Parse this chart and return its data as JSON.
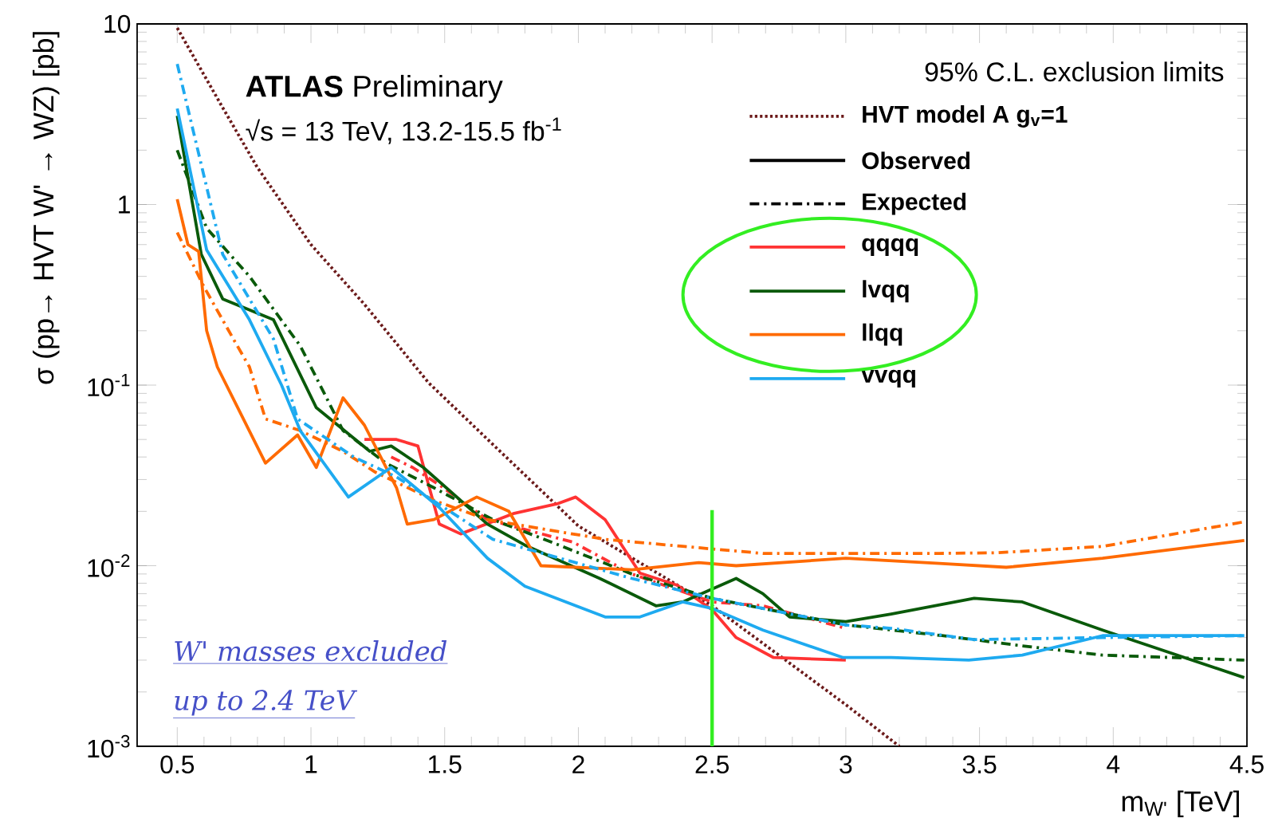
{
  "chart_data": {
    "type": "line",
    "title": "**ATLAS** Preliminary",
    "subtitle": "√s = 13 TeV, 13.2-15.5 fb$^{-1}$",
    "legend_title": "95% C.L. exclusion limits",
    "xlabel": "m$_{W'}$ [TeV]",
    "ylabel": "σ (pp→ HVT W' → WZ) [pb]",
    "log": "y",
    "grid": false,
    "legend": "top right",
    "marker": "none",
    "xlim": [
      0.35,
      4.5
    ],
    "ylim": [
      0.001,
      10
    ],
    "xticks": [
      0.5,
      1,
      1.5,
      2,
      2.5,
      3,
      3.5,
      4,
      4.5
    ],
    "yticks": [
      {
        "value": 0.001,
        "label": "10$^{-3}$"
      },
      {
        "value": 0.01,
        "label": "10$^{-2}$"
      },
      {
        "value": 0.1,
        "label": "10$^{-1}$"
      },
      1,
      10
    ],
    "ref_lines": [
      {
        "axis": "x",
        "value": 2.5,
        "color": "#33ee22"
      }
    ],
    "annotations": [
      "Observed",
      "Expected",
      "W' masses excluded",
      "up to 2.4 TeV"
    ],
    "series": [
      {
        "name": "HVT model A g$_{v}$=1",
        "color": "#6b1a1a",
        "line_style": "dotted",
        "x": [
          0.5,
          0.667,
          0.8,
          1.0,
          1.2,
          1.44,
          1.7,
          2.0,
          2.5,
          3.0,
          3.2
        ],
        "values": [
          9.5,
          3.5,
          1.6,
          0.6,
          0.28,
          0.103,
          0.044,
          0.0166,
          0.006,
          0.0017,
          0.001
        ]
      },
      {
        "name": "qqqq",
        "color": "#ff3333",
        "line_style": "solid",
        "x": [
          1.2,
          1.32,
          1.4,
          1.48,
          1.56,
          1.76,
          1.92,
          1.99,
          2.1,
          2.23,
          2.37,
          2.5,
          2.59,
          2.73,
          3.0
        ],
        "values": [
          0.05,
          0.05,
          0.046,
          0.017,
          0.015,
          0.0195,
          0.022,
          0.024,
          0.018,
          0.0091,
          0.0078,
          0.0057,
          0.004,
          0.0031,
          0.003
        ]
      },
      {
        "color": "#ff3333",
        "line_style": "dashed",
        "x": [
          1.3,
          1.38,
          1.48,
          1.66,
          1.98,
          2.2,
          2.5,
          2.69,
          3.0
        ],
        "values": [
          0.04,
          0.035,
          0.028,
          0.018,
          0.0135,
          0.009,
          0.0063,
          0.006,
          0.0045
        ]
      },
      {
        "name": "lvqq",
        "color": "#0a5a0a",
        "line_style": "solid",
        "x": [
          0.5,
          0.59,
          0.67,
          0.86,
          1.02,
          1.22,
          1.3,
          1.42,
          1.66,
          1.8,
          2.08,
          2.29,
          2.39,
          2.59,
          2.69,
          2.79,
          3.0,
          3.17,
          3.48,
          3.66,
          3.96,
          4.49
        ],
        "values": [
          3.1,
          0.53,
          0.3,
          0.23,
          0.075,
          0.043,
          0.046,
          0.035,
          0.017,
          0.013,
          0.0085,
          0.006,
          0.0063,
          0.0085,
          0.007,
          0.0052,
          0.0049,
          0.0054,
          0.0066,
          0.0063,
          0.0044,
          0.0024
        ]
      },
      {
        "color": "#0a5a0a",
        "line_style": "dashed",
        "x": [
          0.5,
          0.61,
          0.77,
          0.96,
          1.12,
          1.28,
          1.46,
          1.68,
          1.9,
          2.2,
          2.5,
          3.0,
          3.36,
          3.66,
          3.96,
          4.49
        ],
        "values": [
          2.0,
          0.74,
          0.4,
          0.165,
          0.056,
          0.037,
          0.027,
          0.018,
          0.0135,
          0.009,
          0.0066,
          0.0047,
          0.0041,
          0.0036,
          0.0032,
          0.003
        ]
      },
      {
        "name": "llqq",
        "color": "#ff6a00",
        "line_style": "solid",
        "x": [
          0.5,
          0.54,
          0.58,
          0.61,
          0.65,
          0.83,
          0.95,
          1.02,
          1.12,
          1.2,
          1.32,
          1.36,
          1.46,
          1.62,
          1.74,
          1.86,
          2.2,
          2.45,
          2.59,
          3.0,
          3.35,
          3.6,
          3.96,
          4.49
        ],
        "values": [
          1.07,
          0.6,
          0.55,
          0.2,
          0.126,
          0.037,
          0.053,
          0.035,
          0.085,
          0.06,
          0.027,
          0.017,
          0.018,
          0.024,
          0.02,
          0.01,
          0.0095,
          0.0104,
          0.01,
          0.011,
          0.0103,
          0.0098,
          0.011,
          0.0138
        ]
      },
      {
        "color": "#ff6a00",
        "line_style": "dashed",
        "x": [
          0.5,
          0.6,
          0.71,
          0.77,
          0.83,
          0.96,
          1.12,
          1.24,
          1.46,
          1.66,
          1.92,
          2.1,
          2.39,
          2.69,
          3.35,
          3.57,
          3.96,
          4.49
        ],
        "values": [
          0.7,
          0.35,
          0.18,
          0.126,
          0.065,
          0.056,
          0.043,
          0.033,
          0.023,
          0.018,
          0.0155,
          0.014,
          0.0128,
          0.0117,
          0.0117,
          0.0118,
          0.0128,
          0.0175
        ]
      },
      {
        "name": "vvqq",
        "color": "#1eaaf0",
        "line_style": "solid",
        "x": [
          0.5,
          0.61,
          0.77,
          0.89,
          0.96,
          1.14,
          1.3,
          1.48,
          1.66,
          1.8,
          2.1,
          2.23,
          2.39,
          2.5,
          2.69,
          2.99,
          3.17,
          3.46,
          3.66,
          3.96,
          4.49
        ],
        "values": [
          3.4,
          0.56,
          0.23,
          0.1,
          0.056,
          0.024,
          0.035,
          0.021,
          0.011,
          0.0077,
          0.0052,
          0.0052,
          0.0063,
          0.0058,
          0.0044,
          0.0031,
          0.0031,
          0.003,
          0.0032,
          0.0041,
          0.0041
        ]
      },
      {
        "color": "#1eaaf0",
        "line_style": "dashed",
        "x": [
          0.5,
          0.67,
          0.86,
          0.95,
          1.16,
          1.32,
          1.52,
          1.68,
          2.2,
          2.5,
          3.0,
          3.17,
          3.48,
          3.96,
          4.49
        ],
        "values": [
          6.0,
          0.53,
          0.18,
          0.065,
          0.04,
          0.031,
          0.02,
          0.014,
          0.0085,
          0.0066,
          0.0047,
          0.0045,
          0.0039,
          0.004,
          0.0041
        ]
      }
    ]
  }
}
